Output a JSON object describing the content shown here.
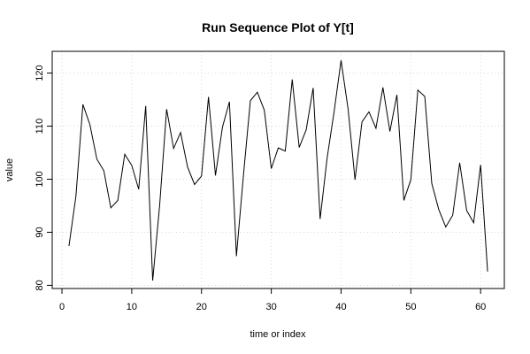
{
  "chart_data": {
    "type": "line",
    "title": "Run Sequence Plot of Y[t]",
    "xlabel": "time or index",
    "ylabel": "value",
    "xlim": [
      -1.4,
      63.4
    ],
    "ylim": [
      79.4,
      124.1
    ],
    "xticks": [
      0,
      10,
      20,
      30,
      40,
      50,
      60
    ],
    "yticks": [
      80,
      90,
      100,
      110,
      120
    ],
    "grid": true,
    "line_color": "#000000",
    "series": [
      {
        "x": [
          1,
          2,
          3,
          4,
          5,
          6,
          7,
          8,
          9,
          10,
          11,
          12,
          13,
          14,
          15,
          16,
          17,
          18,
          19,
          20,
          21,
          22,
          23,
          24,
          25,
          26,
          27,
          28,
          29,
          30,
          31,
          32,
          33,
          34,
          35,
          36,
          37,
          38,
          39,
          40,
          41,
          42,
          43,
          44,
          45,
          46,
          47,
          48,
          49,
          50,
          51,
          52,
          53,
          54,
          55,
          56,
          57,
          58,
          59,
          60,
          61
        ],
        "values": [
          87.4,
          96.8,
          114.1,
          110.3,
          103.8,
          101.6,
          94.6,
          96.0,
          104.7,
          102.6,
          98.1,
          113.8,
          80.9,
          95.1,
          113.2,
          105.8,
          108.8,
          102.3,
          99.0,
          100.6,
          115.5,
          100.7,
          109.8,
          114.6,
          85.5,
          100.6,
          114.8,
          116.4,
          113.0,
          102.0,
          105.9,
          105.3,
          118.8,
          106.0,
          109.3,
          117.2,
          92.5,
          104.0,
          112.7,
          122.4,
          113.3,
          99.9,
          110.8,
          112.7,
          109.6,
          117.3,
          109.0,
          115.9,
          96.0,
          99.9,
          116.8,
          115.6,
          99.2,
          94.3,
          91.0,
          93.2,
          103.1,
          94.1,
          91.8,
          102.7,
          82.6
        ]
      }
    ]
  }
}
